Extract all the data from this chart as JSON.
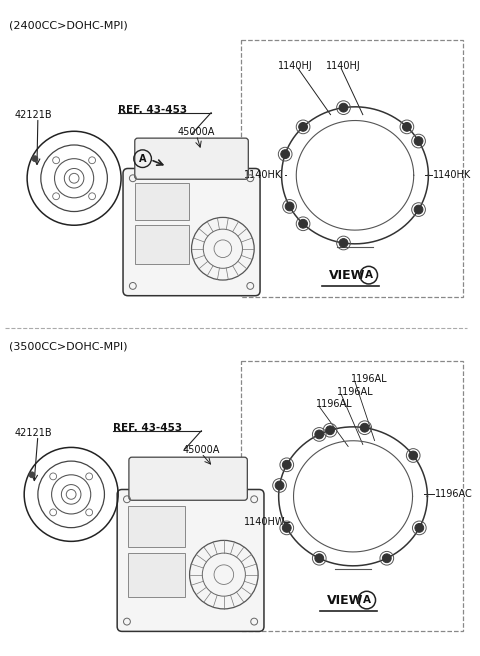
{
  "bg_color": "#ffffff",
  "section1_header": "(2400CC>DOHC-MPI)",
  "section2_header": "(3500CC>DOHC-MPI)",
  "line_color": "#222222",
  "text_color": "#111111",
  "font_size_header": 8,
  "font_size_label": 7,
  "font_size_view": 9,
  "s1_label_part1": "42121B",
  "s1_label_ref": "REF. 43-453",
  "s1_label_part2": "45000A",
  "s1_label_hj1": "1140HJ",
  "s1_label_hj2": "1140HJ",
  "s1_label_hk1": "1140HK",
  "s1_label_hk2": "1140HK",
  "s1_view": "VIEW",
  "s1_view_circle": "A",
  "s2_label_part1": "42121B",
  "s2_label_ref": "REF. 43-453",
  "s2_label_part2": "45000A",
  "s2_label_al1": "1196AL",
  "s2_label_al2": "1196AL",
  "s2_label_al3": "1196AL",
  "s2_label_ac": "1196AC",
  "s2_label_hw": "1140HW",
  "s2_view": "VIEW",
  "s2_view_circle": "A"
}
